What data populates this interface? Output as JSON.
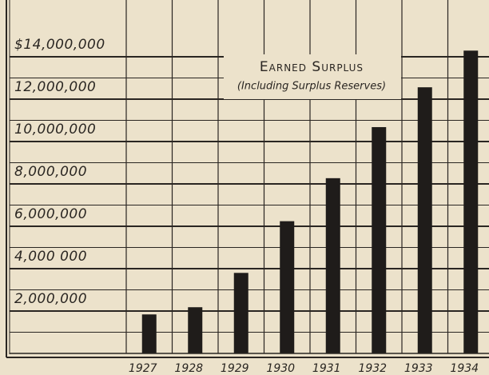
{
  "chart_data": {
    "type": "bar",
    "title": "Earned Surplus",
    "subtitle": "(Including Surplus Reserves)",
    "categories": [
      "1927",
      "1928",
      "1929",
      "1930",
      "1931",
      "1932",
      "1933",
      "1934"
    ],
    "values": [
      1840000,
      2180000,
      3800000,
      6240000,
      8270000,
      10680000,
      12560000,
      14290000
    ],
    "color": "#1f1c1a",
    "ylim": [
      0,
      16000000
    ],
    "yticks": [
      {
        "value": 2000000,
        "label": "2,000,000"
      },
      {
        "value": 4000000,
        "label": "4,000 000"
      },
      {
        "value": 6000000,
        "label": "6,000,000"
      },
      {
        "value": 8000000,
        "label": "8,000,000"
      },
      {
        "value": 10000000,
        "label": "10,000,000"
      },
      {
        "value": 12000000,
        "label": "12,000,000"
      },
      {
        "value": 14000000,
        "label": "$14,000,000"
      }
    ],
    "grid": true
  }
}
